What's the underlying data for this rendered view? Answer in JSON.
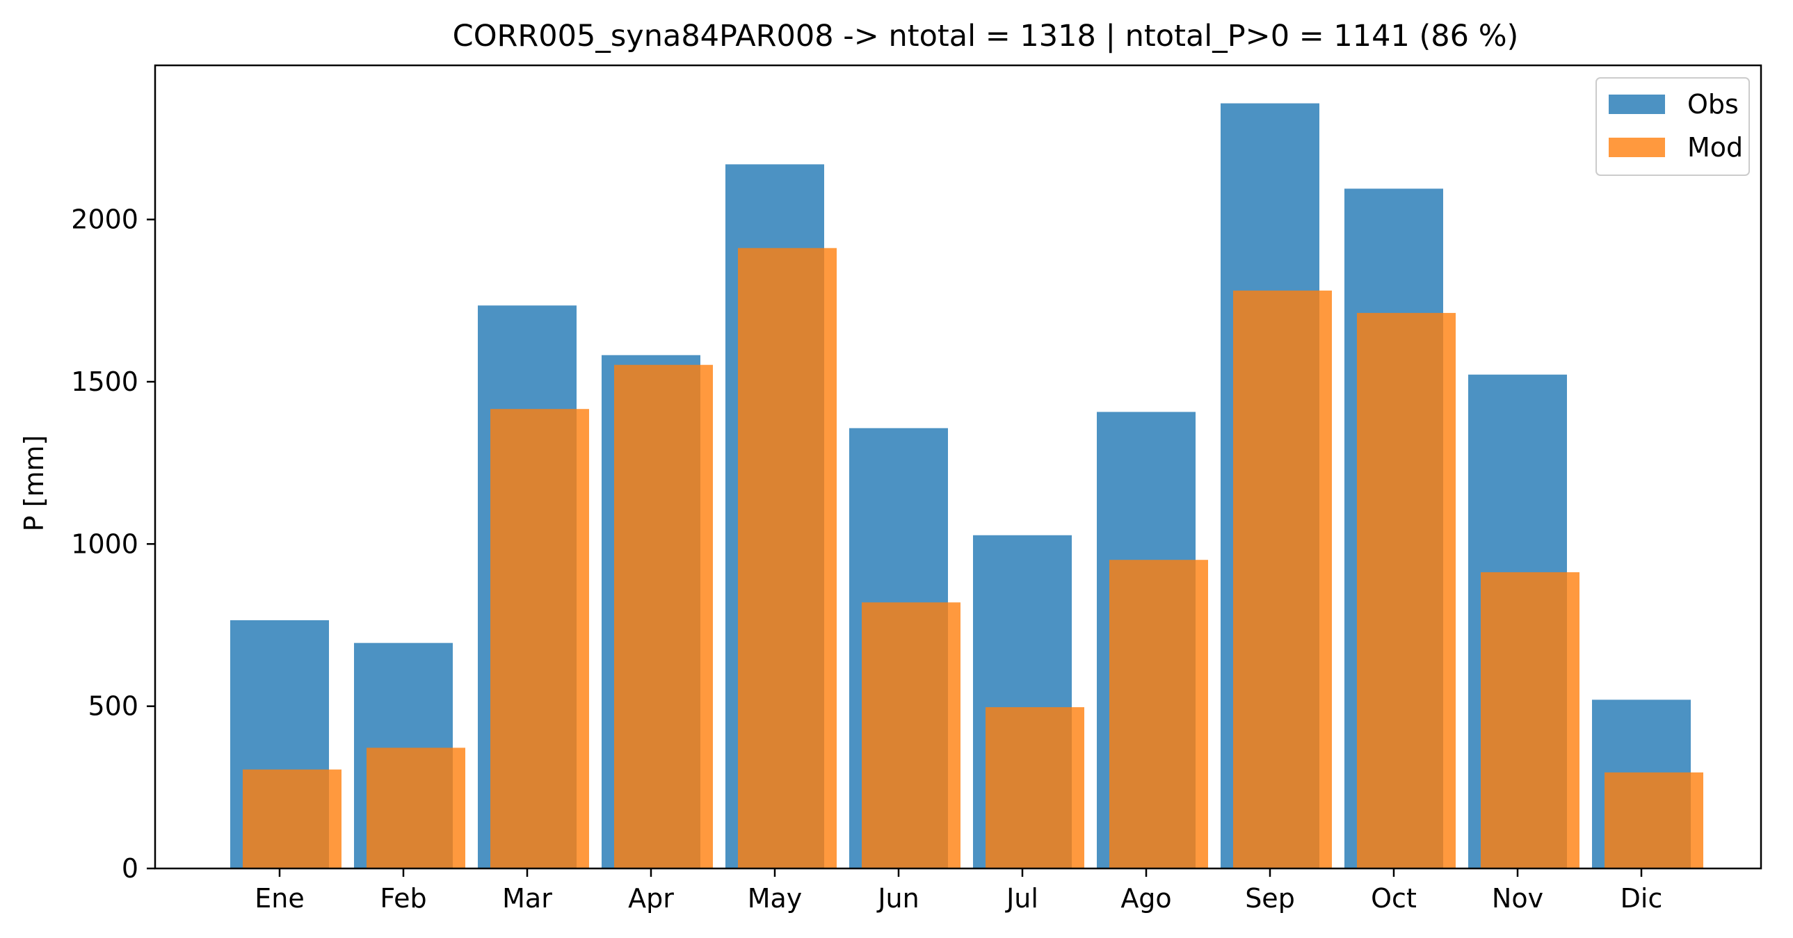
{
  "chart_data": {
    "type": "bar",
    "title": "CORR005_syna84PAR008 -> ntotal = 1318 | ntotal_P>0 = 1141 (86 %)",
    "xlabel": "",
    "ylabel": "P [mm]",
    "categories": [
      "Ene",
      "Feb",
      "Mar",
      "Apr",
      "May",
      "Jun",
      "Jul",
      "Ago",
      "Sep",
      "Oct",
      "Nov",
      "Dic"
    ],
    "series": [
      {
        "name": "Obs",
        "color": "#1f77b4",
        "opacity": 0.8,
        "values": [
          765,
          695,
          1735,
          1582,
          2170,
          1357,
          1027,
          1407,
          2358,
          2095,
          1522,
          520
        ]
      },
      {
        "name": "Mod",
        "color": "#ff7f0e",
        "opacity": 0.8,
        "values": [
          305,
          372,
          1416,
          1552,
          1912,
          820,
          497,
          951,
          1781,
          1712,
          913,
          296
        ]
      }
    ],
    "yticks": [
      "0",
      "500",
      "1000",
      "1500",
      "2000"
    ],
    "ylim": [
      0,
      2475
    ],
    "grid": false,
    "legend_position": "top-right"
  }
}
